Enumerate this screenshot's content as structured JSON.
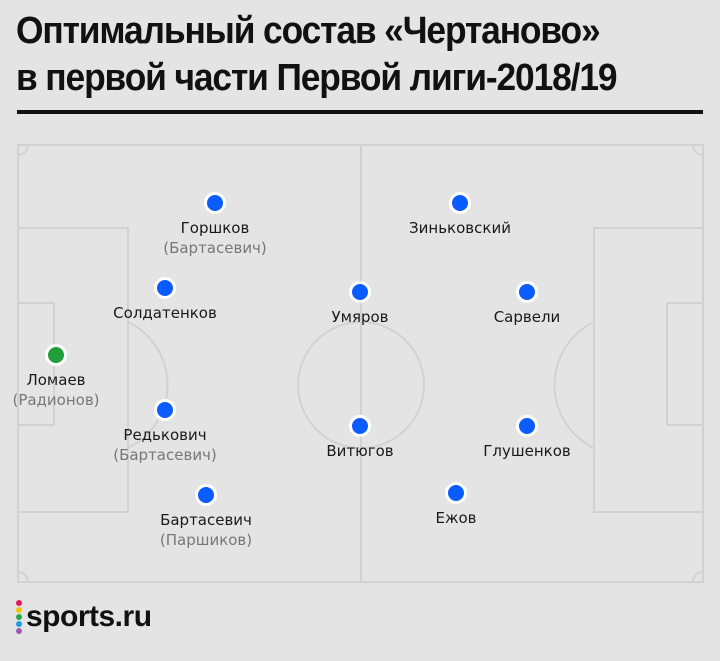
{
  "title": {
    "line1": "Оптимальный состав «Чертаново»",
    "line2": "в первой части Первой лиги-2018/19"
  },
  "colors": {
    "background": "#e4e4e4",
    "pitch_lines": "#d2d2d2",
    "goalkeeper": "#1f9e3a",
    "outfield": "#0a5cff"
  },
  "players": [
    {
      "name": "Ломаев",
      "sub": "(Радионов)",
      "role": "goalkeeper"
    },
    {
      "name": "Горшков",
      "sub": "(Бартасевич)",
      "role": "outfield"
    },
    {
      "name": "Солдатенков",
      "sub": "",
      "role": "outfield"
    },
    {
      "name": "Редькович",
      "sub": "(Бартасевич)",
      "role": "outfield"
    },
    {
      "name": "Бартасевич",
      "sub": "(Паршиков)",
      "role": "outfield"
    },
    {
      "name": "Умяров",
      "sub": "",
      "role": "outfield"
    },
    {
      "name": "Витюгов",
      "sub": "",
      "role": "outfield"
    },
    {
      "name": "Зиньковский",
      "sub": "",
      "role": "outfield"
    },
    {
      "name": "Сарвели",
      "sub": "",
      "role": "outfield"
    },
    {
      "name": "Глушенков",
      "sub": "",
      "role": "outfield"
    },
    {
      "name": "Ежов",
      "sub": "",
      "role": "outfield"
    }
  ],
  "logo": {
    "text": "sports.ru",
    "dot_colors": [
      "#e6195a",
      "#f5c400",
      "#2aa84a",
      "#1ea0e6",
      "#a05ab4"
    ]
  }
}
